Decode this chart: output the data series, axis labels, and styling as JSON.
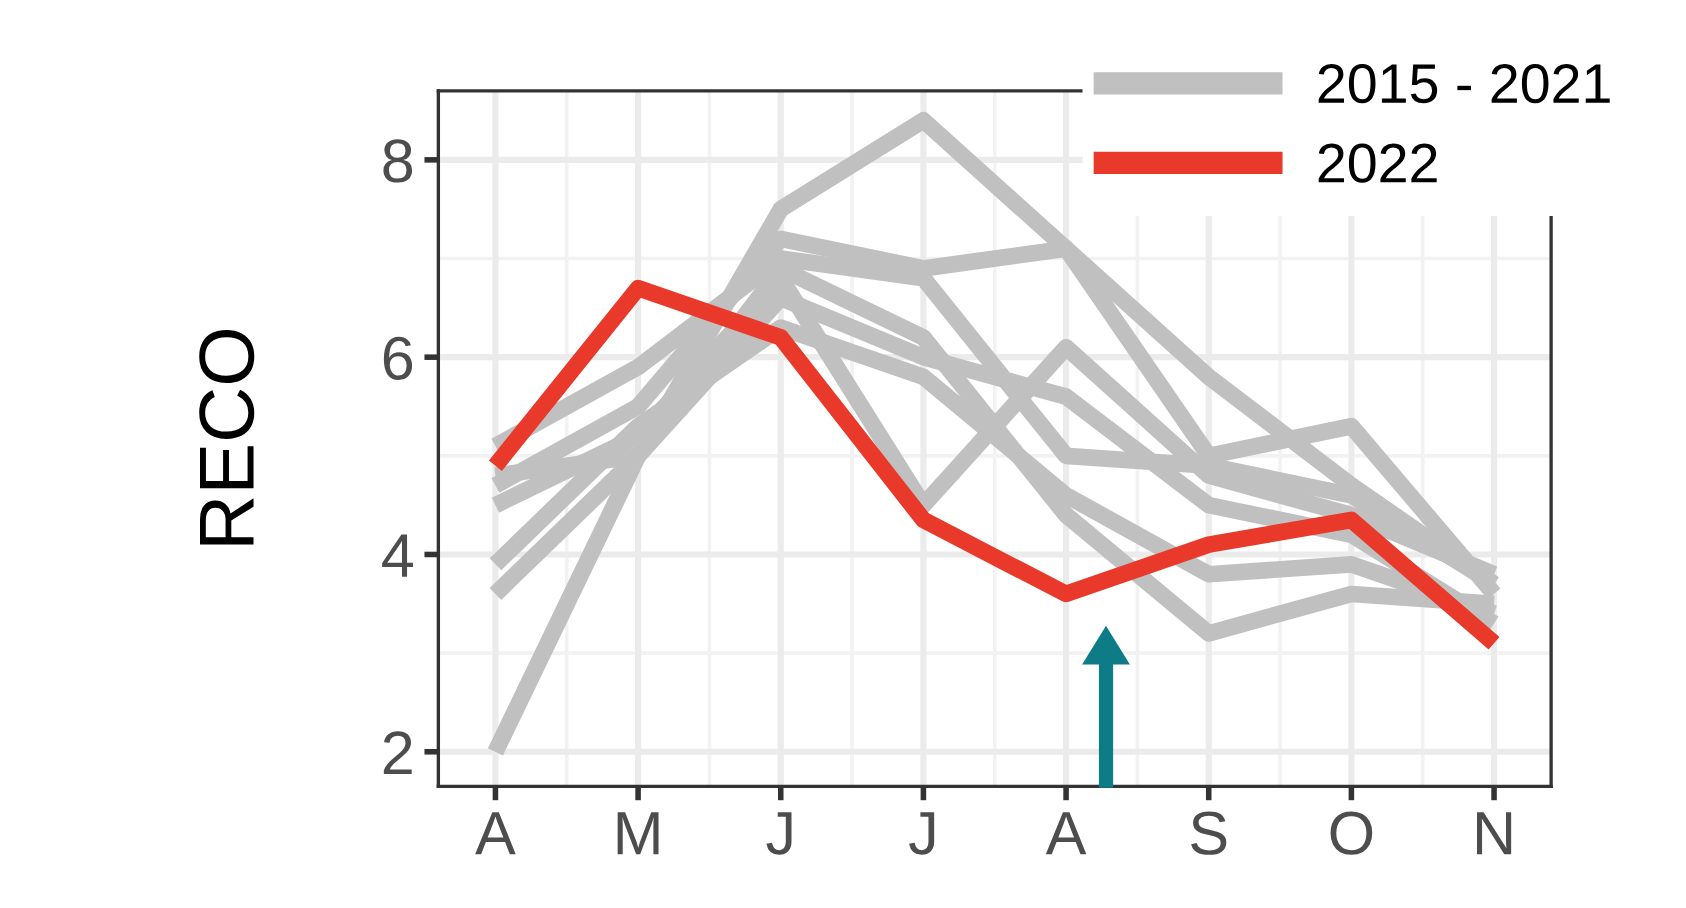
{
  "chart_data": {
    "type": "line",
    "ylabel": "RECO",
    "categories": [
      "A",
      "M",
      "J",
      "J",
      "A",
      "S",
      "O",
      "N"
    ],
    "series": [
      {
        "name": "2015 - 2021",
        "color": "#c0c0c0",
        "values": [
          2.0,
          5.0,
          7.5,
          8.4,
          7.1,
          5.8,
          4.7,
          3.7
        ]
      },
      {
        "color": "#c0c0c0",
        "values": [
          4.7,
          5.5,
          7.2,
          6.9,
          7.1,
          5.0,
          5.3,
          3.6
        ]
      },
      {
        "color": "#c0c0c0",
        "values": [
          3.6,
          5.0,
          6.9,
          6.2,
          4.4,
          3.2,
          3.6,
          3.5
        ]
      },
      {
        "color": "#c0c0c0",
        "values": [
          4.5,
          5.2,
          6.8,
          4.5,
          6.1,
          4.8,
          4.4,
          3.8
        ]
      },
      {
        "color": "#c0c0c0",
        "values": [
          5.1,
          5.9,
          7.0,
          6.8,
          5.0,
          4.9,
          4.6,
          3.7
        ]
      },
      {
        "color": "#c0c0c0",
        "values": [
          3.9,
          5.3,
          6.3,
          5.8,
          4.6,
          3.8,
          3.9,
          3.4
        ]
      },
      {
        "color": "#c0c0c0",
        "values": [
          4.8,
          5.0,
          6.6,
          6.0,
          5.6,
          4.5,
          4.2,
          3.3
        ]
      },
      {
        "name": "2022",
        "color": "#e8392a",
        "values": [
          4.9,
          6.7,
          6.2,
          4.35,
          3.6,
          4.1,
          4.35,
          3.1
        ]
      }
    ],
    "ylim": [
      1.65,
      8.7
    ],
    "yticks": [
      2,
      4,
      6,
      8
    ],
    "grid": true,
    "legend": "top right",
    "marker": "none",
    "line_style": "solid"
  }
}
